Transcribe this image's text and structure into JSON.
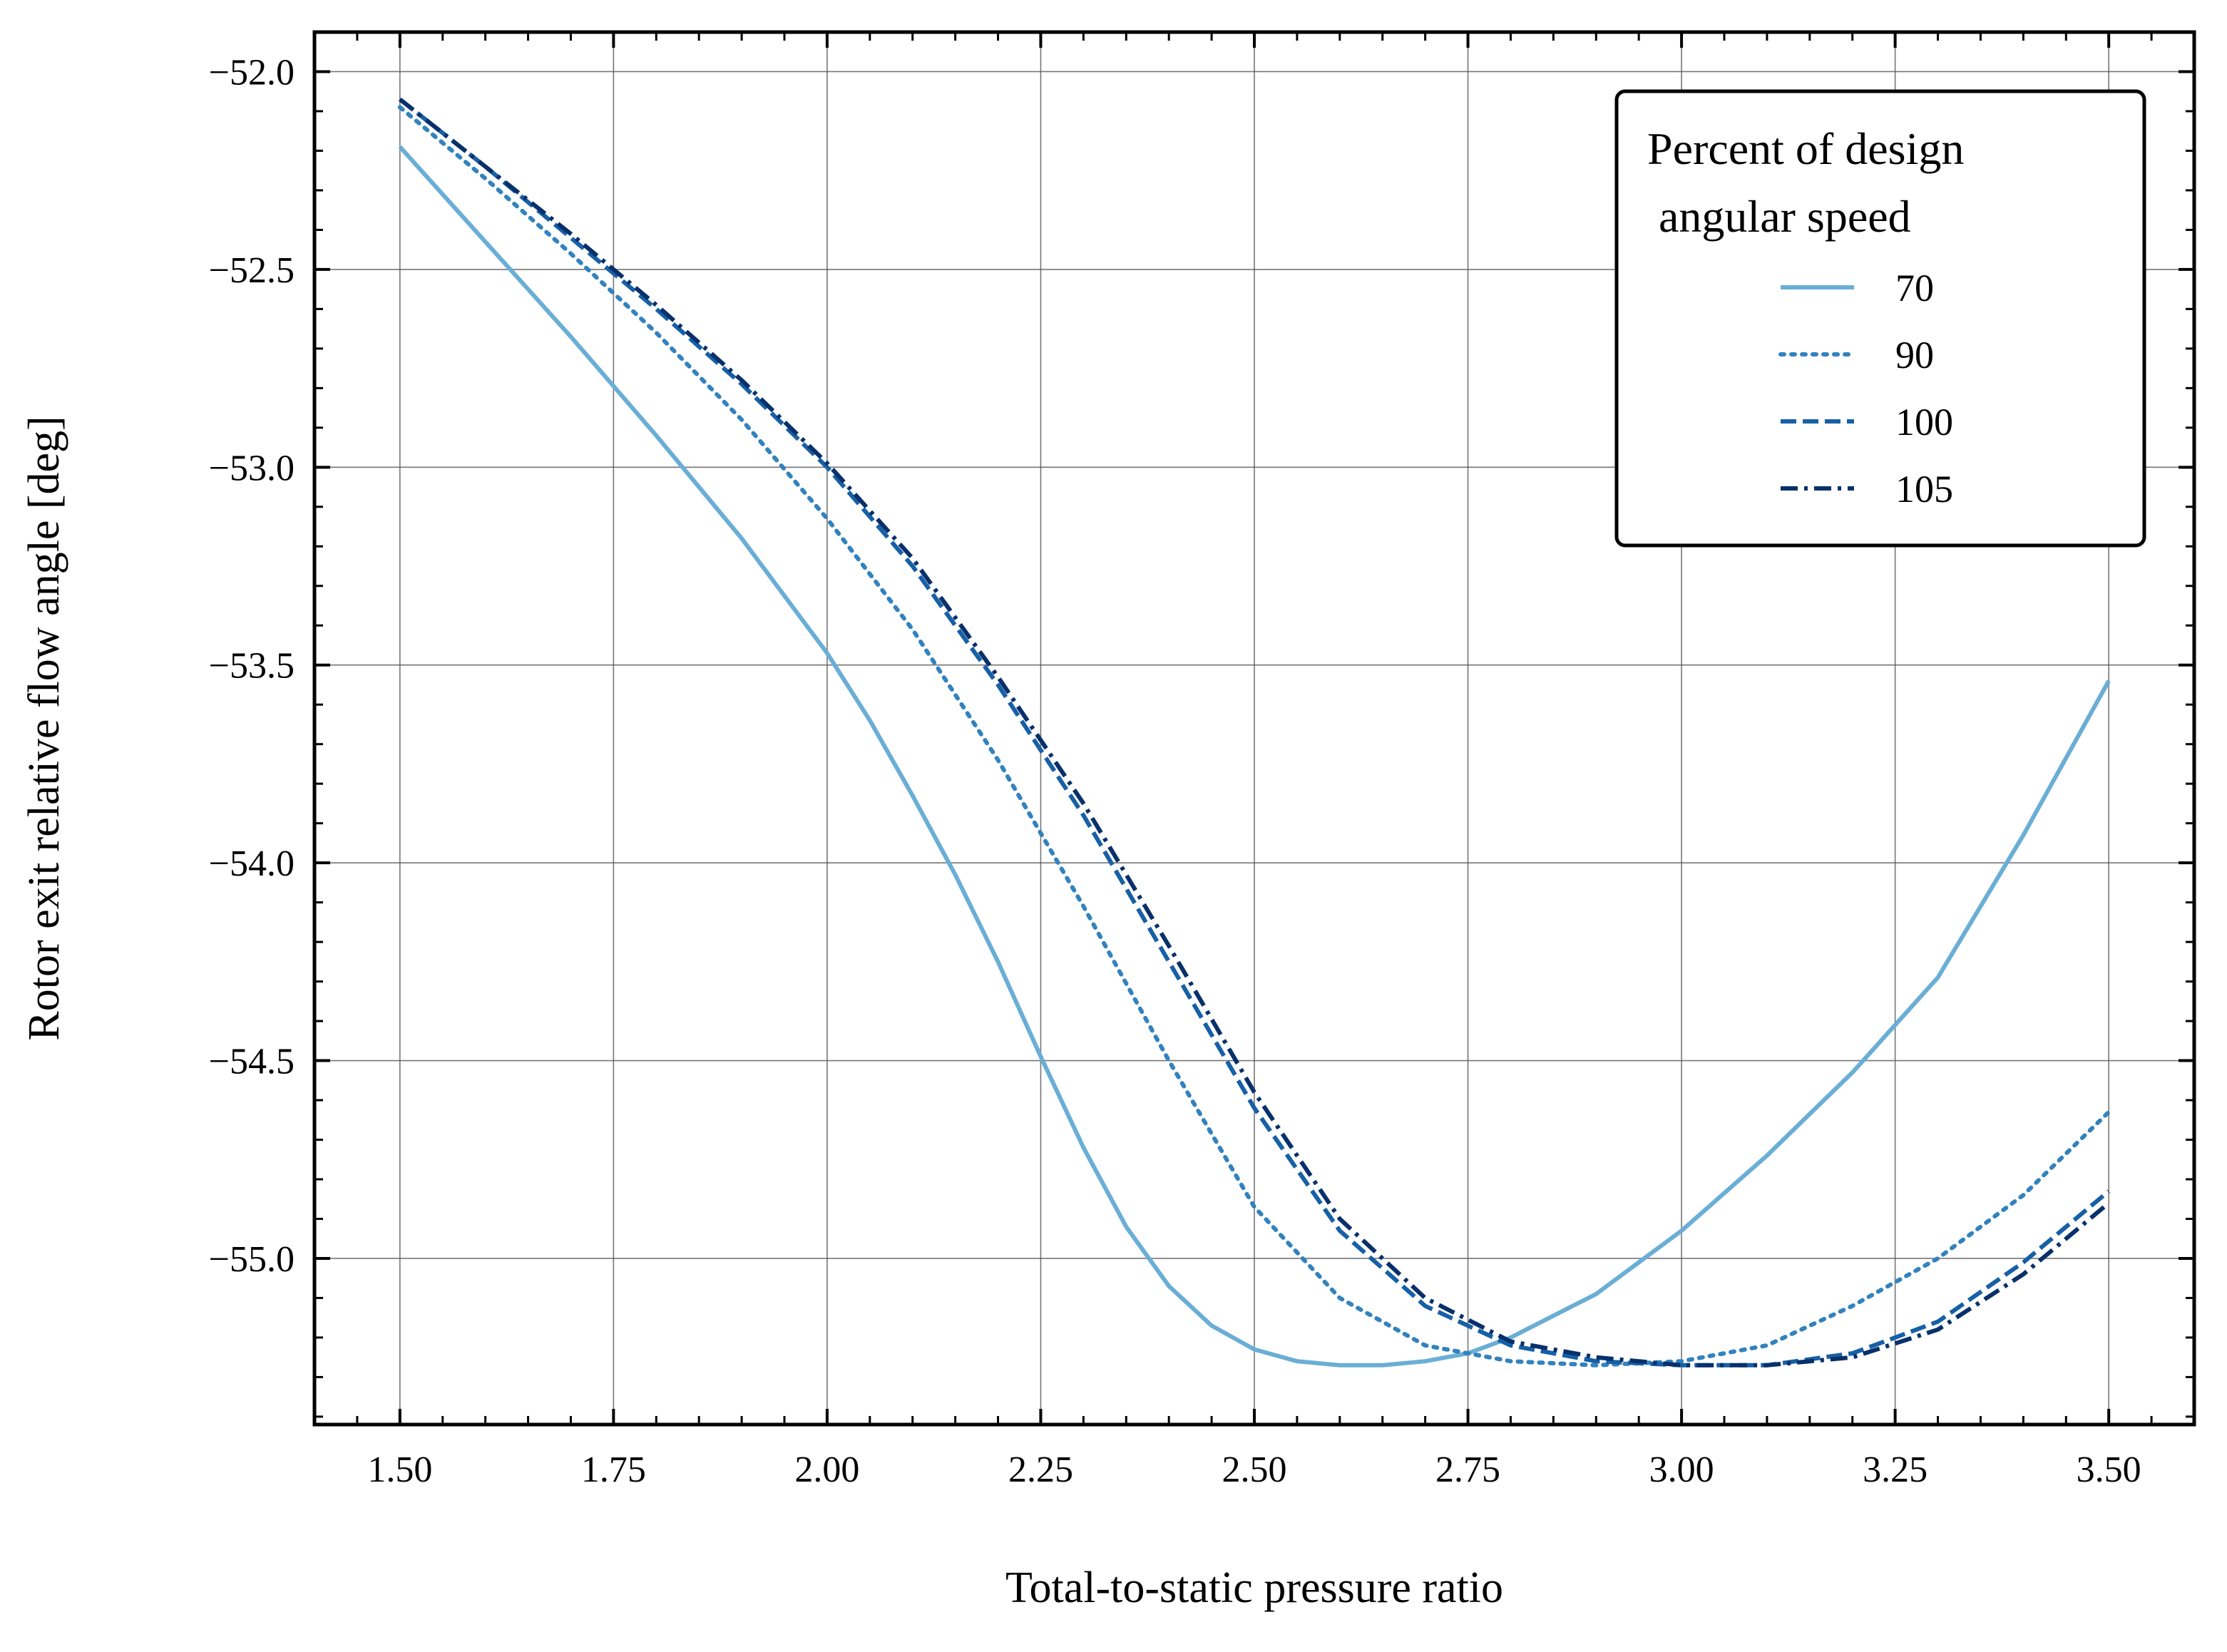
{
  "chart_data": {
    "type": "line",
    "xlabel": "Total-to-static pressure ratio",
    "ylabel": "Rotor exit relative flow angle [deg]",
    "xlim": [
      1.4,
      3.6
    ],
    "ylim": [
      -55.42,
      -51.9
    ],
    "xticks": [
      1.5,
      1.75,
      2.0,
      2.25,
      2.5,
      2.75,
      3.0,
      3.25,
      3.5
    ],
    "xtick_labels": [
      "1.50",
      "1.75",
      "2.00",
      "2.25",
      "2.50",
      "2.75",
      "3.00",
      "3.25",
      "3.50"
    ],
    "yticks": [
      -52.0,
      -52.5,
      -53.0,
      -53.5,
      -54.0,
      -54.5,
      -55.0
    ],
    "ytick_labels": [
      "−52.0",
      "−52.5",
      "−53.0",
      "−53.5",
      "−54.0",
      "−54.5",
      "−55.0"
    ],
    "grid": true,
    "legend": {
      "title_lines": [
        "Percent of design",
        " angular speed"
      ],
      "placement": "top-right"
    },
    "series": [
      {
        "name": "70",
        "color": "#6aaed6",
        "style": "solid",
        "x": [
          1.5,
          1.6,
          1.7,
          1.8,
          1.9,
          2.0,
          2.05,
          2.1,
          2.15,
          2.2,
          2.25,
          2.3,
          2.35,
          2.4,
          2.45,
          2.5,
          2.55,
          2.6,
          2.65,
          2.7,
          2.75,
          2.8,
          2.9,
          3.0,
          3.1,
          3.2,
          3.3,
          3.4,
          3.5
        ],
        "y": [
          -52.19,
          -52.43,
          -52.67,
          -52.92,
          -53.18,
          -53.47,
          -53.64,
          -53.83,
          -54.03,
          -54.25,
          -54.49,
          -54.72,
          -54.92,
          -55.07,
          -55.17,
          -55.23,
          -55.26,
          -55.27,
          -55.27,
          -55.26,
          -55.24,
          -55.2,
          -55.09,
          -54.93,
          -54.74,
          -54.53,
          -54.29,
          -53.93,
          -53.54
        ]
      },
      {
        "name": "90",
        "color": "#3282be",
        "style": "dotted",
        "x": [
          1.5,
          1.6,
          1.7,
          1.8,
          1.9,
          2.0,
          2.1,
          2.2,
          2.3,
          2.4,
          2.5,
          2.6,
          2.7,
          2.8,
          2.9,
          3.0,
          3.1,
          3.2,
          3.3,
          3.4,
          3.5
        ],
        "y": [
          -52.09,
          -52.27,
          -52.46,
          -52.66,
          -52.88,
          -53.13,
          -53.41,
          -53.74,
          -54.11,
          -54.5,
          -54.87,
          -55.1,
          -55.22,
          -55.26,
          -55.27,
          -55.26,
          -55.22,
          -55.12,
          -55.0,
          -54.84,
          -54.63
        ]
      },
      {
        "name": "100",
        "color": "#1760a6",
        "style": "dashed",
        "x": [
          1.5,
          1.6,
          1.7,
          1.8,
          1.9,
          2.0,
          2.1,
          2.2,
          2.3,
          2.4,
          2.5,
          2.6,
          2.7,
          2.8,
          2.9,
          3.0,
          3.05,
          3.1,
          3.2,
          3.3,
          3.4,
          3.5
        ],
        "y": [
          -52.07,
          -52.24,
          -52.42,
          -52.6,
          -52.79,
          -53.0,
          -53.25,
          -53.55,
          -53.88,
          -54.25,
          -54.62,
          -54.93,
          -55.12,
          -55.22,
          -55.26,
          -55.27,
          -55.27,
          -55.27,
          -55.24,
          -55.16,
          -55.01,
          -54.83
        ]
      },
      {
        "name": "105",
        "color": "#08306b",
        "style": "dashdot",
        "x": [
          1.5,
          1.6,
          1.7,
          1.8,
          1.9,
          2.0,
          2.1,
          2.2,
          2.3,
          2.4,
          2.5,
          2.6,
          2.7,
          2.8,
          2.9,
          3.0,
          3.05,
          3.1,
          3.2,
          3.3,
          3.4,
          3.5
        ],
        "y": [
          -52.07,
          -52.24,
          -52.41,
          -52.59,
          -52.78,
          -52.99,
          -53.23,
          -53.53,
          -53.85,
          -54.21,
          -54.58,
          -54.9,
          -55.1,
          -55.21,
          -55.25,
          -55.27,
          -55.27,
          -55.27,
          -55.25,
          -55.18,
          -55.04,
          -54.86
        ]
      }
    ]
  }
}
